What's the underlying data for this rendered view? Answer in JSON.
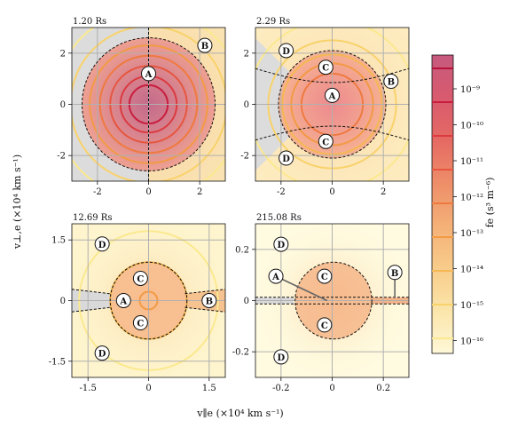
{
  "figure": {
    "xlabel": "v∥e (×10⁴ km s⁻¹)",
    "ylabel": "v⊥,e (×10⁴ km s⁻¹)"
  },
  "colorbar": {
    "label": "fe (s³ m⁻⁶)",
    "ticks": [
      "10⁻⁹",
      "10⁻¹⁰",
      "10⁻¹¹",
      "10⁻¹²",
      "10⁻¹³",
      "10⁻¹⁴",
      "10⁻¹⁵",
      "10⁻¹⁶"
    ],
    "stops": [
      "#c65a7e",
      "#d85a6e",
      "#e56a63",
      "#ee8e69",
      "#f4b077",
      "#f8cc8a",
      "#fbe5aa",
      "#fef8d8"
    ],
    "levels": [
      "#b8123a",
      "#c91e3e",
      "#db3a3f",
      "#e6563f",
      "#ee7a40",
      "#f29a45",
      "#f5b754",
      "#f8d26a",
      "#fbe98e"
    ]
  },
  "chart_data": [
    {
      "type": "heatmap",
      "title": "1.20 Rs",
      "xlim": [
        -3,
        3
      ],
      "ylim": [
        -3,
        3
      ],
      "xticks": [
        -2,
        0,
        2
      ],
      "yticks": [
        -2,
        0,
        2
      ],
      "xtick_labels": [
        "-2",
        "0",
        "2"
      ],
      "ytick_labels": [
        "-2",
        "0",
        "2"
      ],
      "grid": true,
      "core_radius": 2.6,
      "contours": [
        {
          "r": 0.75,
          "level": 1
        },
        {
          "r": 1.1,
          "level": 2
        },
        {
          "r": 1.5,
          "level": 3
        },
        {
          "r": 1.9,
          "level": 4
        },
        {
          "r": 2.3,
          "level": 5
        },
        {
          "r": 3.05,
          "level": 7
        },
        {
          "r": 3.7,
          "level": 8
        }
      ],
      "gray_region": "x<0 outside",
      "dashed_vertical": 0,
      "labels": [
        {
          "text": "A",
          "x": 0,
          "y": 1.2
        },
        {
          "text": "B",
          "x": 2.2,
          "y": 2.3
        }
      ]
    },
    {
      "type": "heatmap",
      "title": "2.29 Rs",
      "xlim": [
        -3,
        3
      ],
      "ylim": [
        -3,
        3
      ],
      "xticks": [
        -2,
        0,
        2
      ],
      "yticks": [
        -2,
        0,
        2
      ],
      "xtick_labels": [
        "-2",
        "0",
        "2"
      ],
      "ytick_labels": [
        "-2",
        "0",
        "2"
      ],
      "grid": true,
      "core_radius": 2.1,
      "contours": [
        {
          "r": 1.2,
          "level": 4
        },
        {
          "r": 1.6,
          "level": 5
        },
        {
          "r": 1.95,
          "level": 6
        },
        {
          "r": 2.5,
          "level": 7
        },
        {
          "r": 3.3,
          "level": 8
        }
      ],
      "hyperbola": {
        "a": 0.85,
        "b": 2.3
      },
      "gray_region": "left wedge",
      "labels": [
        {
          "text": "A",
          "x": 0,
          "y": 0.35
        },
        {
          "text": "B",
          "x": 2.3,
          "y": 0.9
        },
        {
          "text": "C",
          "x": -0.25,
          "y": 1.45
        },
        {
          "text": "C",
          "x": -0.25,
          "y": -1.45
        },
        {
          "text": "D",
          "x": -1.8,
          "y": 2.1
        },
        {
          "text": "D",
          "x": -1.8,
          "y": -2.1
        }
      ]
    },
    {
      "type": "heatmap",
      "title": "12.69 Rs",
      "xlim": [
        -1.9,
        1.9
      ],
      "ylim": [
        -1.9,
        1.9
      ],
      "xticks": [
        -1.5,
        0,
        1.5
      ],
      "yticks": [
        -1.5,
        0,
        1.5
      ],
      "xtick_labels": [
        "-1.5",
        "0",
        "1.5"
      ],
      "ytick_labels": [
        "-1.5",
        "0",
        "1.5"
      ],
      "grid": true,
      "core_radius": 0.95,
      "contours": [
        {
          "r": 0.22,
          "level": 5
        },
        {
          "r": 0.95,
          "level": 6
        },
        {
          "r": 1.72,
          "level": 8
        }
      ],
      "strahl": {
        "half_width_center": 0.17,
        "half_width_edge": 0.28
      },
      "gray_region": "left strahl",
      "labels": [
        {
          "text": "A",
          "x": -0.62,
          "y": 0
        },
        {
          "text": "B",
          "x": 1.5,
          "y": 0
        },
        {
          "text": "C",
          "x": -0.2,
          "y": 0.55
        },
        {
          "text": "C",
          "x": -0.2,
          "y": -0.55
        },
        {
          "text": "D",
          "x": -1.15,
          "y": 1.4
        },
        {
          "text": "D",
          "x": -1.15,
          "y": -1.3
        }
      ]
    },
    {
      "type": "heatmap",
      "title": "215.08 Rs",
      "xlim": [
        -0.3,
        0.3
      ],
      "ylim": [
        -0.3,
        0.3
      ],
      "xticks": [
        -0.2,
        0,
        0.2
      ],
      "yticks": [
        -0.2,
        0,
        0.2
      ],
      "xtick_labels": [
        "-0.2",
        "0",
        "0.2"
      ],
      "ytick_labels": [
        "-0.2",
        "0",
        "0.2"
      ],
      "grid": true,
      "core_radius": 0.15,
      "core_center_x": 0.005,
      "contours": [],
      "beam": {
        "half_width": 0.013
      },
      "gray_region": "left beam",
      "labels": [
        {
          "text": "A",
          "x": -0.22,
          "y": 0.095,
          "arrow_to": [
            -0.02,
            0
          ]
        },
        {
          "text": "B",
          "x": 0.245,
          "y": 0.11,
          "arrow_to": [
            0.245,
            0.01
          ]
        },
        {
          "text": "C",
          "x": -0.03,
          "y": 0.095
        },
        {
          "text": "C",
          "x": -0.03,
          "y": -0.095
        },
        {
          "text": "D",
          "x": -0.2,
          "y": 0.22
        },
        {
          "text": "D",
          "x": -0.2,
          "y": -0.22
        }
      ]
    }
  ]
}
